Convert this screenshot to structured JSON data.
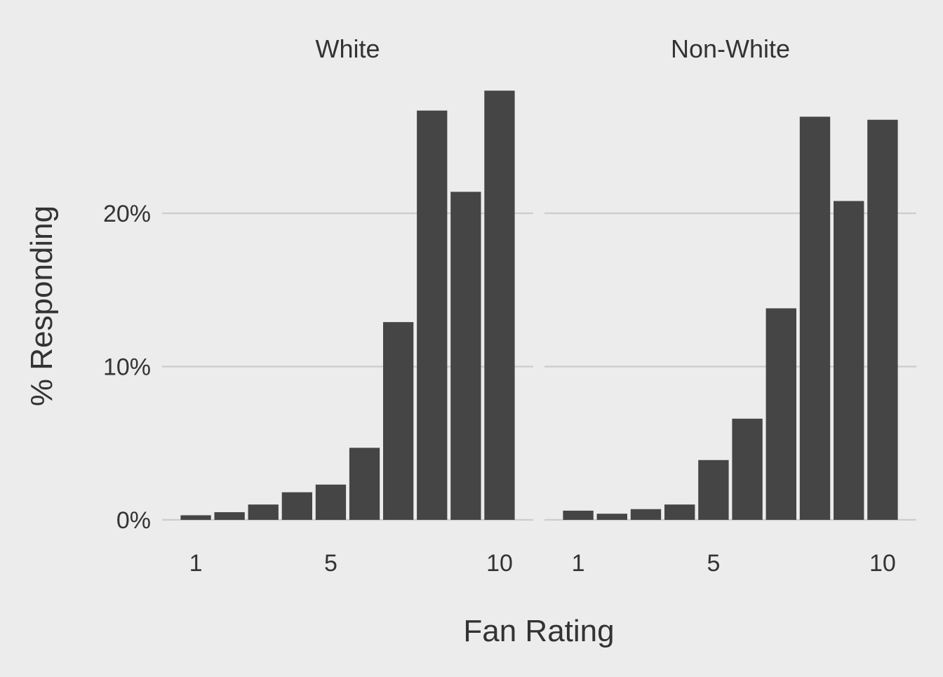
{
  "chart_data": {
    "type": "bar",
    "xlabel": "Fan Rating",
    "ylabel": "% Responding",
    "ylim": [
      0,
      28
    ],
    "yticks": [
      0,
      10,
      20
    ],
    "ytick_labels": [
      "0%",
      "10%",
      "20%"
    ],
    "categories": [
      1,
      2,
      3,
      4,
      5,
      6,
      7,
      8,
      9,
      10
    ],
    "xticks": [
      1,
      5,
      10
    ],
    "xtick_labels": [
      "1",
      "5",
      "10"
    ],
    "grid": true,
    "legend": "none",
    "panels": [
      {
        "name": "White",
        "values": [
          0.3,
          0.5,
          1.0,
          1.8,
          2.3,
          4.7,
          12.9,
          26.7,
          21.4,
          28.0
        ]
      },
      {
        "name": "Non-White",
        "values": [
          0.6,
          0.4,
          0.7,
          1.0,
          3.9,
          6.6,
          13.8,
          26.3,
          20.8,
          26.1
        ]
      }
    ]
  }
}
